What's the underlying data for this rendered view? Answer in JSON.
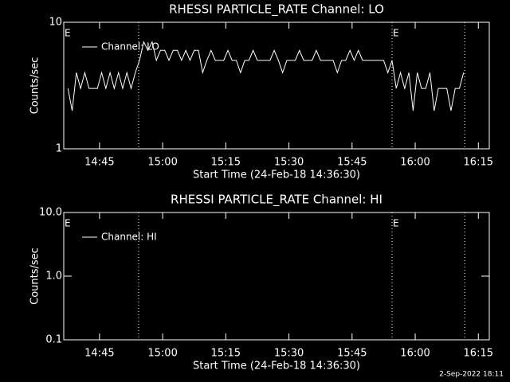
{
  "chart_data": [
    {
      "type": "line",
      "title": "RHESSI PARTICLE_RATE Channel: LO",
      "x_label": "Start Time (24-Feb-18 14:36:30)",
      "y_label": "Counts/sec",
      "log_y": true,
      "xlim": [
        0,
        101.1
      ],
      "ylim": [
        1,
        10
      ],
      "xticks": [
        {
          "value": 8.5,
          "label": "14:45"
        },
        {
          "value": 23.5,
          "label": "15:00"
        },
        {
          "value": 38.5,
          "label": "15:15"
        },
        {
          "value": 53.5,
          "label": "15:30"
        },
        {
          "value": 68.5,
          "label": "15:45"
        },
        {
          "value": 83.5,
          "label": "16:00"
        },
        {
          "value": 98.5,
          "label": "16:15"
        }
      ],
      "yticks": [
        1,
        10
      ],
      "vlines": [
        17.8,
        78.0,
        95.3
      ],
      "annotations": [
        {
          "x": 0,
          "text": "E"
        },
        {
          "x": 78.0,
          "text": "E"
        }
      ],
      "series": [
        {
          "name": "Channel: LO",
          "color": "#ffffff",
          "x": [
            1,
            2,
            3,
            4,
            5,
            6,
            7,
            8,
            9,
            10,
            11,
            12,
            13,
            14,
            15,
            16,
            17,
            18,
            19,
            20,
            21,
            22,
            23,
            24,
            25,
            26,
            27,
            28,
            29,
            30,
            31,
            32,
            33,
            34,
            35,
            36,
            37,
            38,
            39,
            40,
            41,
            42,
            43,
            44,
            45,
            46,
            47,
            48,
            49,
            50,
            51,
            52,
            53,
            54,
            55,
            56,
            57,
            58,
            59,
            60,
            61,
            62,
            63,
            64,
            65,
            66,
            67,
            68,
            69,
            70,
            71,
            72,
            73,
            74,
            75,
            76,
            77,
            78,
            79,
            80,
            81,
            82,
            83,
            84,
            85,
            86,
            87,
            88,
            89,
            90,
            91,
            92,
            93,
            94,
            95
          ],
          "values": [
            3,
            2,
            4,
            3,
            4,
            3,
            3,
            3,
            4,
            3,
            4,
            3,
            4,
            3,
            4,
            3,
            4,
            5,
            7,
            6,
            7,
            5,
            6,
            6,
            5,
            6,
            6,
            5,
            6,
            5,
            6,
            6,
            4,
            5,
            6,
            5,
            5,
            5,
            6,
            5,
            5,
            4,
            5,
            5,
            6,
            5,
            5,
            5,
            5,
            6,
            5,
            4,
            5,
            5,
            5,
            6,
            5,
            5,
            5,
            6,
            5,
            5,
            5,
            5,
            4,
            5,
            5,
            6,
            5,
            6,
            5,
            5,
            5,
            5,
            5,
            5,
            4,
            5,
            3,
            4,
            3,
            4,
            2,
            4,
            3,
            3,
            4,
            2,
            3,
            3,
            3,
            2,
            3,
            3,
            4
          ]
        }
      ]
    },
    {
      "type": "line",
      "title": "RHESSI PARTICLE_RATE Channel: HI",
      "x_label": "Start Time (24-Feb-18 14:36:30)",
      "y_label": "Counts/sec",
      "log_y": true,
      "xlim": [
        0,
        101.1
      ],
      "ylim": [
        0.1,
        10
      ],
      "xticks": [
        {
          "value": 8.5,
          "label": "14:45"
        },
        {
          "value": 23.5,
          "label": "15:00"
        },
        {
          "value": 38.5,
          "label": "15:15"
        },
        {
          "value": 53.5,
          "label": "15:30"
        },
        {
          "value": 68.5,
          "label": "15:45"
        },
        {
          "value": 83.5,
          "label": "16:00"
        },
        {
          "value": 98.5,
          "label": "16:15"
        }
      ],
      "yticks": [
        0.1,
        {
          "value": 1,
          "label": "1.0"
        },
        {
          "value": 10,
          "label": "10.0"
        }
      ],
      "vlines": [
        17.8,
        78.0,
        95.3
      ],
      "annotations": [
        {
          "x": 0,
          "text": "E"
        },
        {
          "x": 78.0,
          "text": "E"
        }
      ],
      "series": [
        {
          "name": "Channel: HI",
          "color": "#ffffff",
          "x": [],
          "values": []
        }
      ]
    }
  ],
  "footer": "2-Sep-2022 18:11"
}
